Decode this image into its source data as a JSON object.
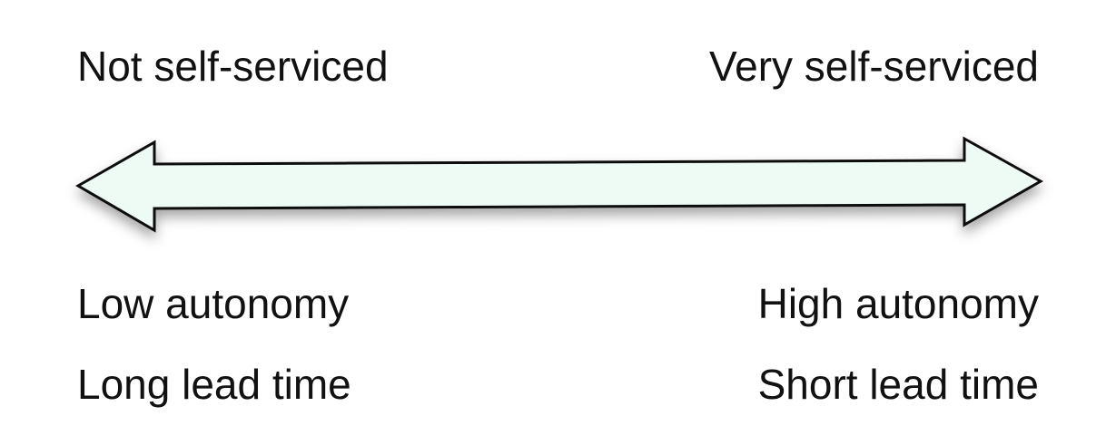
{
  "top": {
    "left_label": "Not self-serviced",
    "right_label": "Very self-serviced"
  },
  "bottom": {
    "left_autonomy": "Low autonomy",
    "right_autonomy": "High autonomy",
    "left_lead_time": "Long lead time",
    "right_lead_time": "Short lead time"
  },
  "arrow": {
    "fill_color": "#eefaf4",
    "stroke_color": "#111111"
  }
}
